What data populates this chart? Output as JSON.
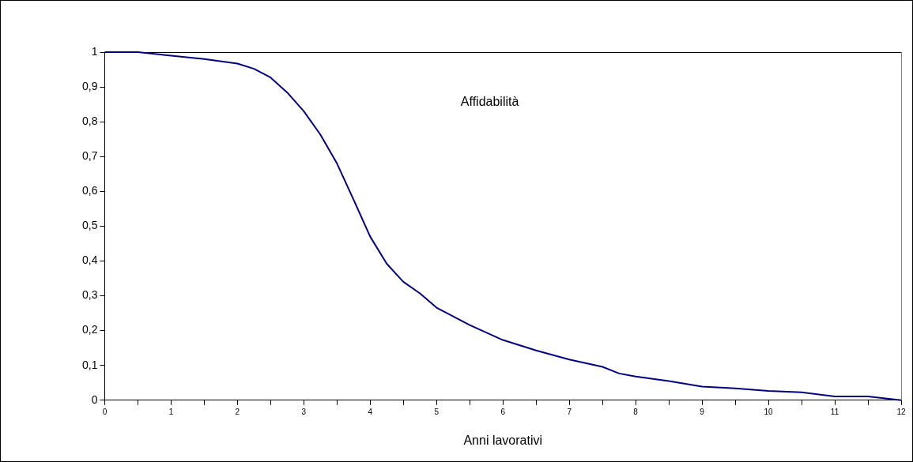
{
  "chart_data": {
    "type": "line",
    "xlabel": "Anni lavorativi",
    "annotations": [
      "Affidabilità"
    ],
    "x": [
      0,
      0.5,
      1,
      1.5,
      2,
      2.25,
      2.5,
      2.75,
      3,
      3.25,
      3.5,
      3.75,
      4,
      4.25,
      4.5,
      4.75,
      5,
      5.5,
      6,
      6.5,
      7,
      7.5,
      7.75,
      8,
      8.5,
      9,
      9.5,
      10,
      10.5,
      11,
      11.5,
      12
    ],
    "series": [
      {
        "color": "#000080",
        "values": [
          1,
          1,
          0.99,
          0.98,
          0.967,
          0.952,
          0.927,
          0.884,
          0.83,
          0.763,
          0.68,
          0.576,
          0.47,
          0.392,
          0.34,
          0.307,
          0.266,
          0.216,
          0.173,
          0.143,
          0.117,
          0.096,
          0.077,
          0.068,
          0.055,
          0.039,
          0.034,
          0.027,
          0.023,
          0.011,
          0.011,
          0
        ]
      }
    ],
    "xlim": [
      0,
      12
    ],
    "ylim": [
      0,
      1
    ],
    "xticks": [
      0,
      {
        "value": 0.5,
        "label": null
      },
      1,
      {
        "value": 1.5,
        "label": null
      },
      2,
      {
        "value": 2.5,
        "label": null
      },
      3,
      {
        "value": 3.5,
        "label": null
      },
      4,
      {
        "value": 4.5,
        "label": null
      },
      5,
      {
        "value": 5.5,
        "label": null
      },
      6,
      {
        "value": 6.5,
        "label": null
      },
      7,
      {
        "value": 7.5,
        "label": null
      },
      8,
      {
        "value": 8.5,
        "label": null
      },
      9,
      {
        "value": 9.5,
        "label": null
      },
      10,
      {
        "value": 10.5,
        "label": null
      },
      11,
      {
        "value": 11.5,
        "label": null
      },
      12
    ],
    "yticks": [
      0,
      {
        "value": 0.1,
        "label": "0,1"
      },
      {
        "value": 0.2,
        "label": "0,2"
      },
      {
        "value": 0.3,
        "label": "0,3"
      },
      {
        "value": 0.4,
        "label": "0,4"
      },
      {
        "value": 0.5,
        "label": "0,5"
      },
      {
        "value": 0.6,
        "label": "0,6"
      },
      {
        "value": 0.7,
        "label": "0,7"
      },
      {
        "value": 0.8,
        "label": "0,8"
      },
      {
        "value": 0.9,
        "label": "0,9"
      },
      1
    ],
    "grid": false,
    "legend": false,
    "marker": "none",
    "line_style": "solid"
  }
}
